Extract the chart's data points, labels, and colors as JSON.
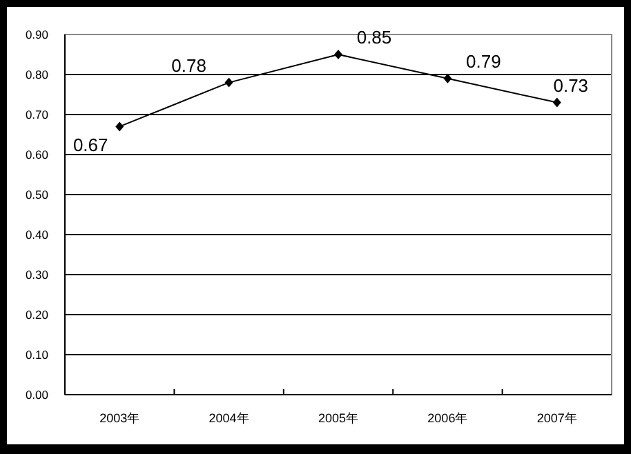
{
  "chart_data": {
    "type": "line",
    "categories": [
      "2003年",
      "2004年",
      "2005年",
      "2006年",
      "2007年"
    ],
    "values": [
      0.67,
      0.78,
      0.85,
      0.79,
      0.73
    ],
    "color": "#000000",
    "ylim": [
      0,
      0.9
    ],
    "yticks": [
      {
        "value": 0,
        "label": "0.00"
      },
      {
        "value": 0.1,
        "label": "0.10"
      },
      {
        "value": 0.2,
        "label": "0.20"
      },
      {
        "value": 0.3,
        "label": "0.30"
      },
      {
        "value": 0.4,
        "label": "0.40"
      },
      {
        "value": 0.5,
        "label": "0.50"
      },
      {
        "value": 0.6,
        "label": "0.60"
      },
      {
        "value": 0.7,
        "label": "0.70"
      },
      {
        "value": 0.8,
        "label": "0.80"
      },
      {
        "value": 0.9,
        "label": "0.90"
      }
    ],
    "grid": "y",
    "marker": "diamond",
    "data_labels": true
  }
}
